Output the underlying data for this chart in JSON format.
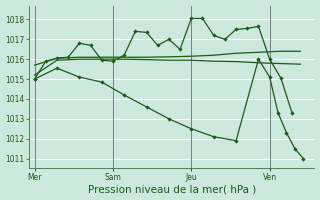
{
  "background_color": "#cde8dc",
  "grid_color": "#ffffff",
  "line_color": "#1a5c1a",
  "ylim": [
    1010.5,
    1018.7
  ],
  "yticks": [
    1011,
    1012,
    1013,
    1014,
    1015,
    1016,
    1017,
    1018
  ],
  "xlabel": "Pression niveau de la mer( hPa )",
  "xtick_labels": [
    "Mer",
    "Sam",
    "Jeu",
    "Ven"
  ],
  "xtick_positions": [
    0,
    28,
    56,
    84
  ],
  "xlim": [
    -2,
    100
  ],
  "series1_x": [
    0,
    4,
    8,
    12,
    16,
    20,
    24,
    28,
    32,
    36,
    40,
    44,
    48,
    52,
    56,
    60,
    64,
    68,
    72,
    76,
    80,
    84,
    88,
    92
  ],
  "series1_y": [
    1015.0,
    1015.9,
    1016.05,
    1016.1,
    1016.8,
    1016.7,
    1015.95,
    1015.9,
    1016.2,
    1017.4,
    1017.35,
    1016.7,
    1017.0,
    1016.5,
    1018.05,
    1018.05,
    1017.2,
    1017.0,
    1017.5,
    1017.55,
    1017.65,
    1016.0,
    1015.05,
    1013.3
  ],
  "series2_x": [
    0,
    8,
    16,
    24,
    32,
    40,
    48,
    56,
    64,
    72,
    80,
    88,
    95
  ],
  "series2_y": [
    1015.7,
    1016.05,
    1016.1,
    1016.1,
    1016.1,
    1016.1,
    1016.12,
    1016.15,
    1016.2,
    1016.3,
    1016.35,
    1016.4,
    1016.4
  ],
  "series3_x": [
    0,
    8,
    16,
    24,
    32,
    40,
    48,
    56,
    64,
    72,
    80,
    88,
    95
  ],
  "series3_y": [
    1015.2,
    1015.95,
    1016.0,
    1016.0,
    1016.0,
    1015.98,
    1015.95,
    1015.95,
    1015.9,
    1015.88,
    1015.82,
    1015.78,
    1015.75
  ],
  "series4_x": [
    0,
    8,
    16,
    24,
    32,
    40,
    48,
    56,
    64,
    72,
    80,
    84,
    87,
    90,
    93,
    96
  ],
  "series4_y": [
    1015.0,
    1015.55,
    1015.1,
    1014.85,
    1014.2,
    1013.6,
    1013.0,
    1012.5,
    1012.1,
    1011.9,
    1016.0,
    1015.1,
    1013.3,
    1012.3,
    1011.5,
    1011.0
  ],
  "vline_color": "#666677",
  "tick_fontsize": 5.5,
  "xlabel_fontsize": 7.5
}
